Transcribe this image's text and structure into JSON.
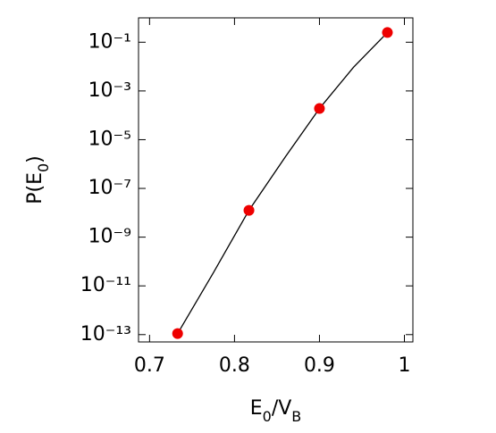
{
  "chart_data": {
    "type": "scatter",
    "xlabel": [
      {
        "text": "E"
      },
      {
        "text": "0",
        "sub": true
      },
      {
        "text": "/V"
      },
      {
        "text": "B",
        "sub": true
      }
    ],
    "ylabel": [
      {
        "text": "P(E"
      },
      {
        "text": "0",
        "sub": true
      },
      {
        "text": ")"
      }
    ],
    "xlim": [
      0.687,
      1.01
    ],
    "xticks": [
      0.7,
      0.8,
      0.9,
      1
    ],
    "ylim": [
      5e-14,
      1
    ],
    "log_y": true,
    "yticks": [
      {
        "value": 1e-13,
        "label": "10⁻¹³"
      },
      {
        "value": 1e-11,
        "label": "10⁻¹¹"
      },
      {
        "value": 1e-09,
        "label": "10⁻⁹"
      },
      {
        "value": 1e-07,
        "label": "10⁻⁷"
      },
      {
        "value": 1e-05,
        "label": "10⁻⁵"
      },
      {
        "value": 0.001,
        "label": "10⁻³"
      },
      {
        "value": 0.1,
        "label": "10⁻¹"
      }
    ],
    "series": [
      {
        "kind": "line",
        "color": "#000000",
        "x": [
          0.733,
          0.775,
          0.817,
          0.86,
          0.9,
          0.94,
          0.98
        ],
        "values": [
          1.1e-13,
          3.4e-11,
          1.26e-08,
          2e-06,
          0.00019,
          0.0093,
          0.25
        ]
      },
      {
        "kind": "points",
        "color": "#ee0000",
        "x": [
          0.733,
          0.817,
          0.9,
          0.98
        ],
        "values": [
          1.1e-13,
          1.26e-08,
          0.00019,
          0.25
        ]
      }
    ]
  }
}
